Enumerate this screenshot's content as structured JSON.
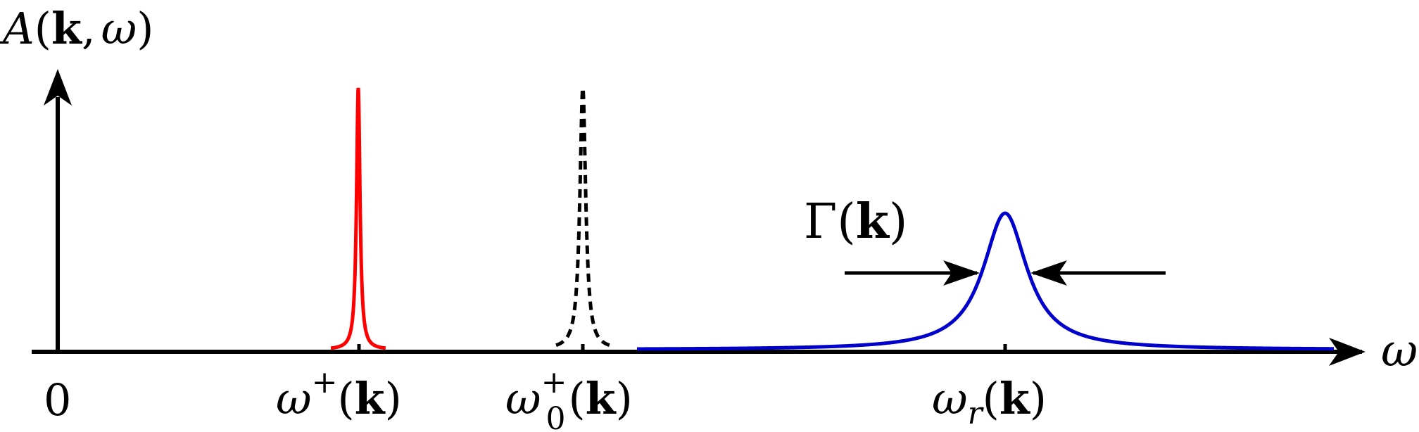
{
  "labels": {
    "y_axis": "A(k, ω)",
    "y_axis_parts": {
      "A": "A",
      "open": "(",
      "k": "k",
      "comma": ",",
      "omega": "ω",
      "close": ")"
    },
    "x_axis": "ω",
    "origin": "0",
    "peak_sharp": {
      "omega": "ω",
      "sup": "+",
      "rest_open": "(",
      "k": "k",
      "rest_close": ")"
    },
    "peak_dashed": {
      "omega": "ω",
      "sub": "0",
      "sup": "+",
      "rest_open": "(",
      "k": "k",
      "rest_close": ")"
    },
    "peak_broad": {
      "omega": "ω",
      "sub": "r",
      "rest_open": "(",
      "k": "k",
      "rest_close": ")"
    },
    "width": {
      "gamma": "Γ",
      "rest_open": "(",
      "k": "k",
      "rest_close": ")"
    }
  },
  "colors": {
    "axis": "#000000",
    "sharp_peak": "#ff0000",
    "dashed_peak": "#000000",
    "broad_peak": "#0000cc"
  }
}
